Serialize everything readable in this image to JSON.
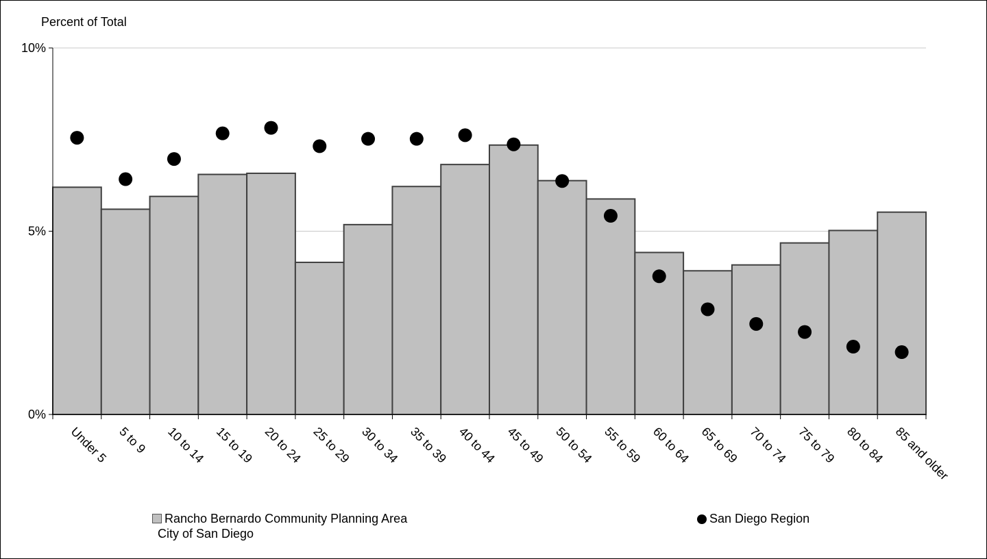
{
  "colors": {
    "bar_fill": "#c0c0c0",
    "bar_stroke": "#404040",
    "dot_fill": "#000000",
    "gridline": "#c8c8c8",
    "axis": "#000000"
  },
  "chart_data": {
    "type": "bar",
    "title": "",
    "ylabel": "Percent of Total",
    "xlabel": "",
    "ylim": [
      0,
      10
    ],
    "y_ticks": [
      {
        "value": 0,
        "label": "0%"
      },
      {
        "value": 5,
        "label": "5%"
      },
      {
        "value": 10,
        "label": "10%"
      }
    ],
    "grid": true,
    "legend_position": "bottom",
    "categories": [
      "Under 5",
      "5 to 9",
      "10 to 14",
      "15 to 19",
      "20 to 24",
      "25 to 29",
      "30 to 34",
      "35 to 39",
      "40 to 44",
      "45 to 49",
      "50 to 54",
      "55 to 59",
      "60 to 64",
      "65 to 69",
      "70 to 74",
      "75 to 79",
      "80 to 84",
      "85 and older"
    ],
    "series": [
      {
        "name": "Rancho Bernardo Community Planning Area City of San Diego",
        "legend_lines": [
          "Rancho Bernardo Community Planning Area",
          "City of San Diego"
        ],
        "render": "bar",
        "values": [
          6.2,
          5.6,
          5.95,
          6.55,
          6.58,
          4.15,
          5.18,
          6.22,
          6.82,
          7.35,
          6.38,
          5.88,
          4.42,
          3.92,
          4.08,
          4.68,
          5.02,
          5.52
        ]
      },
      {
        "name": "San Diego Region",
        "legend_lines": [
          "San Diego Region"
        ],
        "render": "dot",
        "values": [
          7.55,
          6.42,
          6.97,
          7.67,
          7.82,
          7.32,
          7.52,
          7.52,
          7.62,
          7.37,
          6.37,
          5.42,
          3.77,
          2.87,
          2.47,
          2.25,
          1.85,
          1.7
        ]
      }
    ]
  }
}
